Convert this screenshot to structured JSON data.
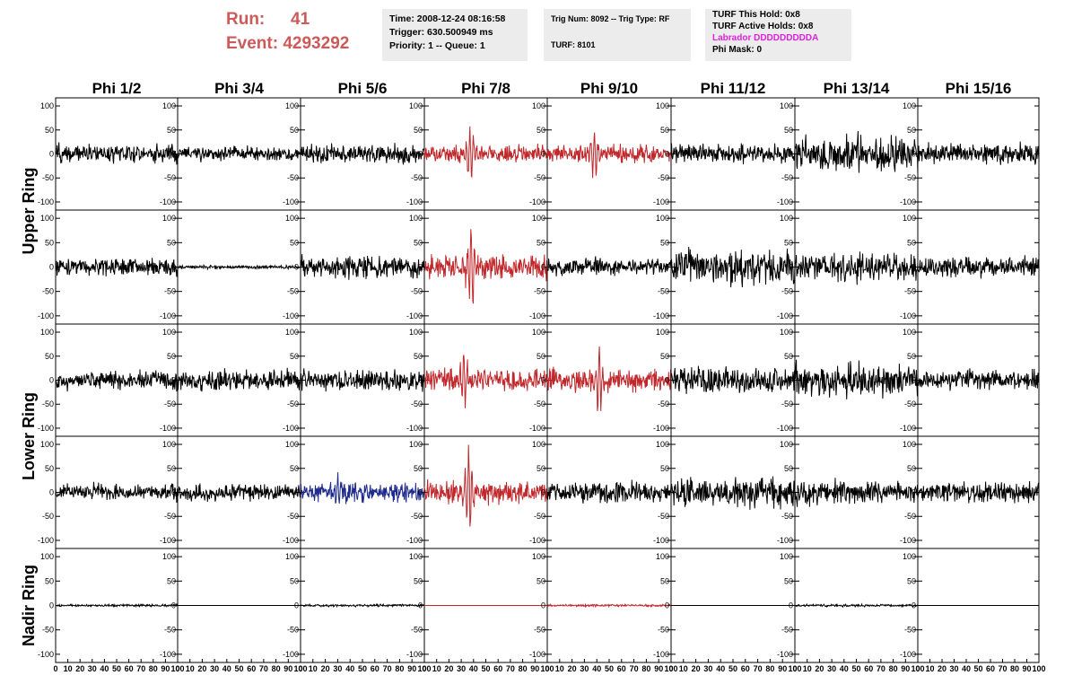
{
  "header": {
    "run_label": "Run:",
    "run_value": "41",
    "event_label": "Event:",
    "event_value": "4293292",
    "time": "Time: 2008-12-24 08:16:58",
    "trigger": "Trigger: 630.500949 ms",
    "priority_queue": "Priority: 1 -- Queue: 1",
    "trig_num_type": "Trig Num: 8092 -- Trig Type: RF",
    "turf": "TURF: 8101",
    "turf_this_hold": "TURF This Hold: 0x8",
    "turf_active_holds": "TURF Active Holds: 0x8",
    "labrador": "Labrador DDDDDDDDDA",
    "phi_mask": "Phi Mask: 0"
  },
  "colors": {
    "run_text": "#cc5a5a",
    "labrador_text": "#e020e0",
    "trace_default": "#000000",
    "trace_red": "#c0282c",
    "trace_blue": "#1e2a8c",
    "info_bg": "#ececec"
  },
  "chart_data": {
    "type": "line",
    "columns": [
      "Phi 1/2",
      "Phi 3/4",
      "Phi 5/6",
      "Phi 7/8",
      "Phi 9/10",
      "Phi 11/12",
      "Phi 13/14",
      "Phi 15/16"
    ],
    "ring_labels": [
      {
        "text": "Upper Ring",
        "rows": [
          0,
          1
        ]
      },
      {
        "text": "Lower Ring",
        "rows": [
          2,
          3
        ]
      },
      {
        "text": "Nadir Ring",
        "rows": [
          4
        ]
      }
    ],
    "ylim": [
      -115,
      115
    ],
    "xlim": [
      0,
      100
    ],
    "y_ticks": [
      -100,
      -50,
      0,
      50,
      100
    ],
    "y_tick_labels": [
      "-100",
      "-50",
      "0",
      "50",
      "100"
    ],
    "x_ticks": [
      0,
      10,
      20,
      30,
      40,
      50,
      60,
      70,
      80,
      90,
      100
    ],
    "x_tick_labels": [
      "0",
      "10",
      "20",
      "30",
      "40",
      "50",
      "60",
      "70",
      "80",
      "90",
      "100"
    ],
    "grid": false,
    "panels": [
      [
        {
          "color": "black",
          "amp": 17,
          "pulse": 0,
          "pulse_at": 0
        },
        {
          "color": "black",
          "amp": 13,
          "pulse": 0,
          "pulse_at": 0
        },
        {
          "color": "black",
          "amp": 16,
          "pulse": 0,
          "pulse_at": 0
        },
        {
          "color": "red",
          "amp": 15,
          "pulse": 65,
          "pulse_at": 37
        },
        {
          "color": "red",
          "amp": 16,
          "pulse": 55,
          "pulse_at": 38
        },
        {
          "color": "black",
          "amp": 17,
          "pulse": 0,
          "pulse_at": 0
        },
        {
          "color": "black",
          "amp": 35,
          "pulse": 0,
          "pulse_at": 0
        },
        {
          "color": "black",
          "amp": 18,
          "pulse": 0,
          "pulse_at": 0
        }
      ],
      [
        {
          "color": "black",
          "amp": 15,
          "pulse": 0,
          "pulse_at": 0
        },
        {
          "color": "black",
          "amp": 3,
          "pulse": 0,
          "pulse_at": 0
        },
        {
          "color": "black",
          "amp": 20,
          "pulse": 0,
          "pulse_at": 0
        },
        {
          "color": "red",
          "amp": 22,
          "pulse": 90,
          "pulse_at": 38
        },
        {
          "color": "black",
          "amp": 15,
          "pulse": 0,
          "pulse_at": 0
        },
        {
          "color": "black",
          "amp": 32,
          "pulse": 0,
          "pulse_at": 0
        },
        {
          "color": "black",
          "amp": 25,
          "pulse": 0,
          "pulse_at": 0
        },
        {
          "color": "black",
          "amp": 18,
          "pulse": 0,
          "pulse_at": 0
        }
      ],
      [
        {
          "color": "black",
          "amp": 17,
          "pulse": 0,
          "pulse_at": 0
        },
        {
          "color": "black",
          "amp": 18,
          "pulse": 0,
          "pulse_at": 0
        },
        {
          "color": "black",
          "amp": 20,
          "pulse": 0,
          "pulse_at": 0
        },
        {
          "color": "red",
          "amp": 20,
          "pulse": 70,
          "pulse_at": 32
        },
        {
          "color": "red",
          "amp": 20,
          "pulse": 65,
          "pulse_at": 42
        },
        {
          "color": "black",
          "amp": 25,
          "pulse": 0,
          "pulse_at": 0
        },
        {
          "color": "black",
          "amp": 30,
          "pulse": 0,
          "pulse_at": 0
        },
        {
          "color": "black",
          "amp": 18,
          "pulse": 0,
          "pulse_at": 0
        }
      ],
      [
        {
          "color": "black",
          "amp": 15,
          "pulse": 0,
          "pulse_at": 0
        },
        {
          "color": "black",
          "amp": 15,
          "pulse": 0,
          "pulse_at": 0
        },
        {
          "color": "blue",
          "amp": 17,
          "pulse": 40,
          "pulse_at": 30
        },
        {
          "color": "red",
          "amp": 20,
          "pulse": 110,
          "pulse_at": 36
        },
        {
          "color": "black",
          "amp": 20,
          "pulse": 0,
          "pulse_at": 0
        },
        {
          "color": "black",
          "amp": 28,
          "pulse": 0,
          "pulse_at": 0
        },
        {
          "color": "black",
          "amp": 22,
          "pulse": 0,
          "pulse_at": 0
        },
        {
          "color": "black",
          "amp": 18,
          "pulse": 0,
          "pulse_at": 0
        }
      ],
      [
        {
          "color": "black",
          "amp": 2,
          "pulse": 0,
          "pulse_at": 0
        },
        {
          "color": "black",
          "amp": 0,
          "pulse": 0,
          "pulse_at": 0
        },
        {
          "color": "black",
          "amp": 2,
          "pulse": 0,
          "pulse_at": 0
        },
        {
          "color": "red",
          "amp": 0,
          "pulse": 0,
          "pulse_at": 0
        },
        {
          "color": "red",
          "amp": 2,
          "pulse": 0,
          "pulse_at": 0
        },
        {
          "color": "black",
          "amp": 0,
          "pulse": 0,
          "pulse_at": 0
        },
        {
          "color": "black",
          "amp": 2,
          "pulse": 0,
          "pulse_at": 0
        },
        {
          "color": "black",
          "amp": 0,
          "pulse": 0,
          "pulse_at": 0
        }
      ]
    ]
  }
}
